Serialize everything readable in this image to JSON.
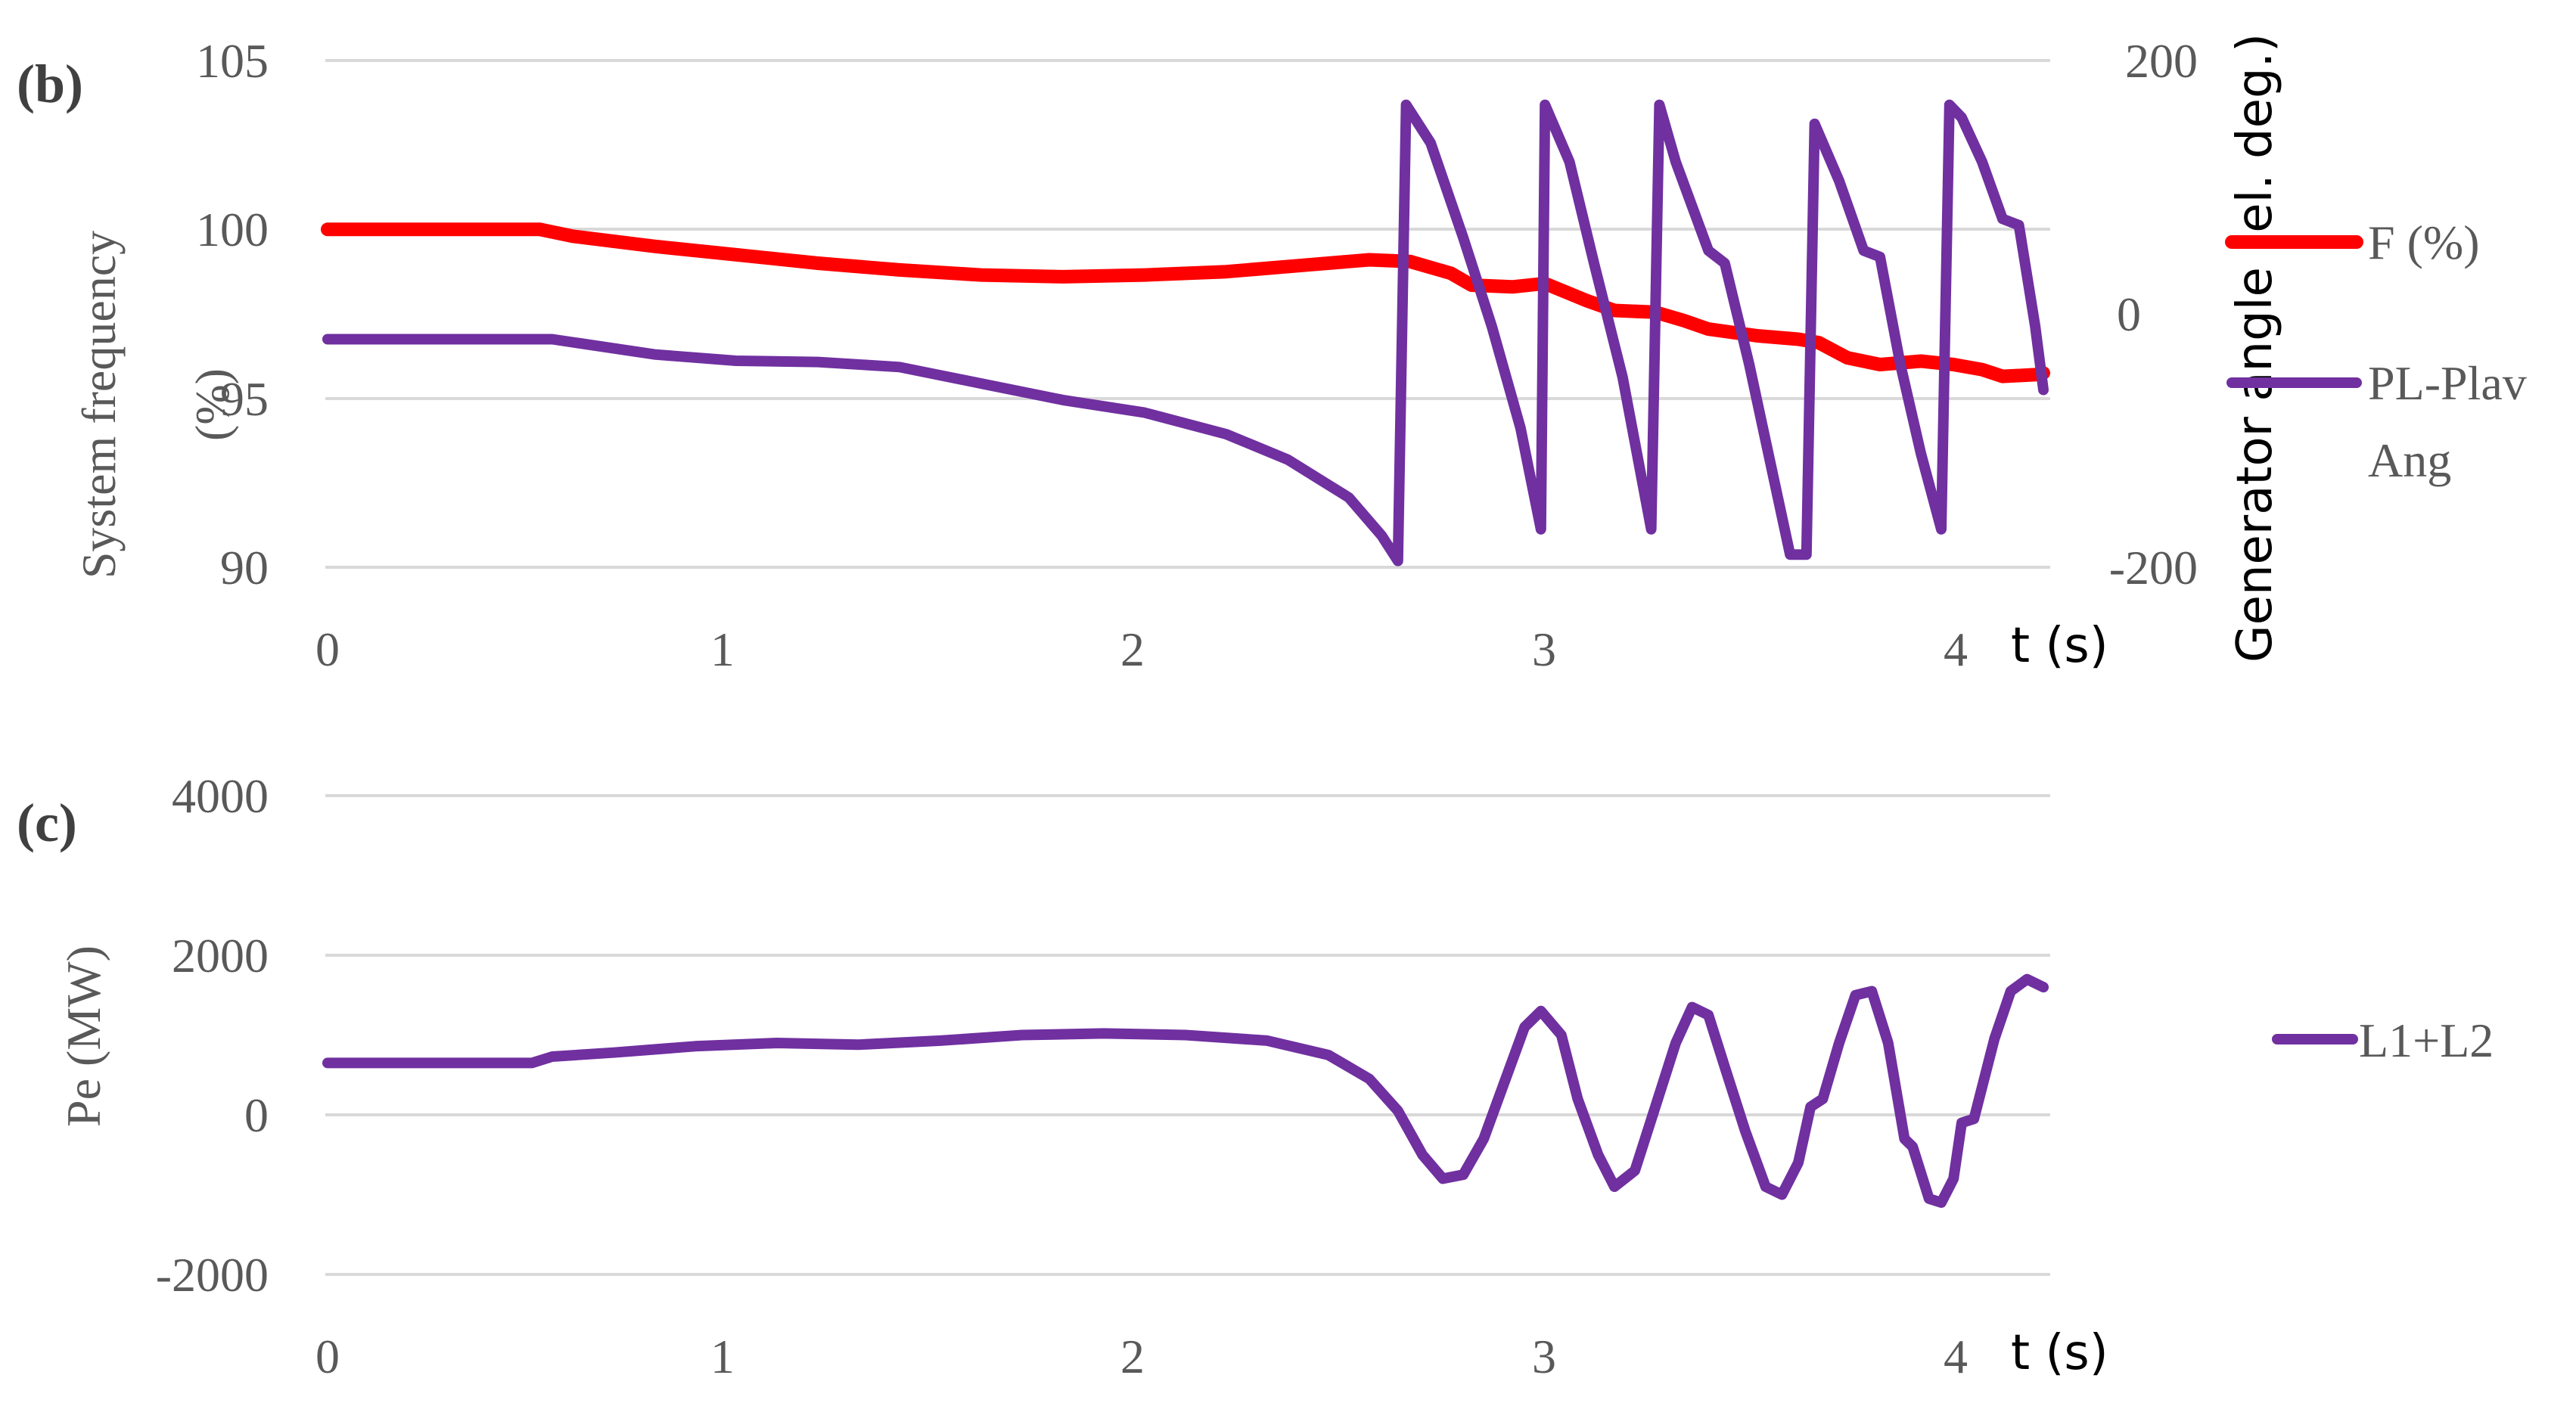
{
  "colors": {
    "frequency": "#ff0000",
    "purple": "#7030a0",
    "grid": "#d9d9d9",
    "text": "#595959"
  },
  "chart_data": [
    {
      "type": "line",
      "panel_label": "(b)",
      "xlabel": "t (s)",
      "ylabel": "System frequency (%)",
      "ylabel_lines": [
        "System frequency",
        "(%)"
      ],
      "y2label": "Generator angle (el. deg.)",
      "xlim": [
        0,
        4.2
      ],
      "ylim": [
        90,
        105
      ],
      "y2lim": [
        -200,
        200
      ],
      "xticks": [
        "0",
        "1",
        "2",
        "3",
        "4"
      ],
      "yticks": [
        "105",
        "100",
        "95",
        "90"
      ],
      "y2ticks": [
        "200",
        "0",
        "-200"
      ],
      "grid": true,
      "legend_position": "right",
      "series": [
        {
          "name": "F (%)",
          "axis": "left",
          "color": "#ff0000",
          "points": [
            [
              0,
              100
            ],
            [
              0.52,
              100
            ],
            [
              0.6,
              99.8
            ],
            [
              0.8,
              99.5
            ],
            [
              1.0,
              99.25
            ],
            [
              1.2,
              99.0
            ],
            [
              1.4,
              98.8
            ],
            [
              1.6,
              98.65
            ],
            [
              1.8,
              98.6
            ],
            [
              2.0,
              98.65
            ],
            [
              2.2,
              98.75
            ],
            [
              2.4,
              98.95
            ],
            [
              2.55,
              99.1
            ],
            [
              2.65,
              99.05
            ],
            [
              2.75,
              98.7
            ],
            [
              2.8,
              98.35
            ],
            [
              2.9,
              98.3
            ],
            [
              2.98,
              98.4
            ],
            [
              3.08,
              97.9
            ],
            [
              3.15,
              97.6
            ],
            [
              3.25,
              97.55
            ],
            [
              3.32,
              97.3
            ],
            [
              3.38,
              97.05
            ],
            [
              3.5,
              96.85
            ],
            [
              3.6,
              96.75
            ],
            [
              3.65,
              96.65
            ],
            [
              3.72,
              96.2
            ],
            [
              3.8,
              96.0
            ],
            [
              3.9,
              96.1
            ],
            [
              3.98,
              96.0
            ],
            [
              4.05,
              95.85
            ],
            [
              4.1,
              95.65
            ],
            [
              4.18,
              95.7
            ],
            [
              4.2,
              95.75
            ]
          ]
        },
        {
          "name": "PL-Plav Ang",
          "name_lines": [
            "PL-Plav",
            "Ang"
          ],
          "axis": "right",
          "color": "#7030a0",
          "points": [
            [
              0,
              -20
            ],
            [
              0.55,
              -20
            ],
            [
              0.8,
              -32
            ],
            [
              1.0,
              -37
            ],
            [
              1.2,
              -38
            ],
            [
              1.4,
              -42
            ],
            [
              1.6,
              -55
            ],
            [
              1.8,
              -68
            ],
            [
              2.0,
              -78
            ],
            [
              2.2,
              -95
            ],
            [
              2.35,
              -115
            ],
            [
              2.5,
              -145
            ],
            [
              2.58,
              -175
            ],
            [
              2.62,
              -195
            ],
            [
              2.64,
              165
            ],
            [
              2.7,
              135
            ],
            [
              2.78,
              60
            ],
            [
              2.85,
              -10
            ],
            [
              2.92,
              -90
            ],
            [
              2.97,
              -170
            ],
            [
              2.98,
              165
            ],
            [
              3.04,
              120
            ],
            [
              3.1,
              40
            ],
            [
              3.17,
              -50
            ],
            [
              3.24,
              -170
            ],
            [
              3.26,
              165
            ],
            [
              3.3,
              120
            ],
            [
              3.38,
              50
            ],
            [
              3.42,
              40
            ],
            [
              3.48,
              -40
            ],
            [
              3.54,
              -130
            ],
            [
              3.58,
              -190
            ],
            [
              3.62,
              -190
            ],
            [
              3.64,
              150
            ],
            [
              3.7,
              105
            ],
            [
              3.76,
              50
            ],
            [
              3.8,
              45
            ],
            [
              3.85,
              -40
            ],
            [
              3.9,
              -110
            ],
            [
              3.95,
              -170
            ],
            [
              3.97,
              165
            ],
            [
              4.0,
              155
            ],
            [
              4.05,
              120
            ],
            [
              4.1,
              75
            ],
            [
              4.14,
              70
            ],
            [
              4.18,
              -10
            ],
            [
              4.2,
              -60
            ]
          ]
        }
      ]
    },
    {
      "type": "line",
      "panel_label": "(c)",
      "xlabel": "t (s)",
      "ylabel": "Pe (MW)",
      "xlim": [
        0,
        4.2
      ],
      "ylim": [
        -2000,
        4000
      ],
      "xticks": [
        "0",
        "1",
        "2",
        "3",
        "4"
      ],
      "yticks": [
        "4000",
        "2000",
        "0",
        "-2000"
      ],
      "grid": true,
      "legend_position": "right",
      "series": [
        {
          "name": "L1+L2",
          "color": "#7030a0",
          "points": [
            [
              0,
              650
            ],
            [
              0.5,
              650
            ],
            [
              0.55,
              730
            ],
            [
              0.7,
              780
            ],
            [
              0.9,
              860
            ],
            [
              1.1,
              900
            ],
            [
              1.3,
              880
            ],
            [
              1.5,
              930
            ],
            [
              1.7,
              1000
            ],
            [
              1.9,
              1020
            ],
            [
              2.1,
              1000
            ],
            [
              2.3,
              930
            ],
            [
              2.45,
              750
            ],
            [
              2.55,
              450
            ],
            [
              2.62,
              50
            ],
            [
              2.68,
              -500
            ],
            [
              2.73,
              -800
            ],
            [
              2.78,
              -750
            ],
            [
              2.83,
              -300
            ],
            [
              2.88,
              400
            ],
            [
              2.93,
              1100
            ],
            [
              2.97,
              1300
            ],
            [
              3.02,
              1000
            ],
            [
              3.06,
              200
            ],
            [
              3.11,
              -500
            ],
            [
              3.15,
              -900
            ],
            [
              3.2,
              -700
            ],
            [
              3.25,
              100
            ],
            [
              3.3,
              900
            ],
            [
              3.34,
              1350
            ],
            [
              3.38,
              1250
            ],
            [
              3.42,
              600
            ],
            [
              3.47,
              -200
            ],
            [
              3.52,
              -900
            ],
            [
              3.56,
              -1000
            ],
            [
              3.6,
              -600
            ],
            [
              3.63,
              100
            ],
            [
              3.66,
              200
            ],
            [
              3.7,
              900
            ],
            [
              3.74,
              1500
            ],
            [
              3.78,
              1550
            ],
            [
              3.82,
              900
            ],
            [
              3.86,
              -300
            ],
            [
              3.88,
              -400
            ],
            [
              3.92,
              -1050
            ],
            [
              3.95,
              -1100
            ],
            [
              3.98,
              -800
            ],
            [
              4.0,
              -100
            ],
            [
              4.03,
              -50
            ],
            [
              4.08,
              950
            ],
            [
              4.12,
              1550
            ],
            [
              4.16,
              1700
            ],
            [
              4.2,
              1600
            ]
          ]
        }
      ]
    }
  ]
}
